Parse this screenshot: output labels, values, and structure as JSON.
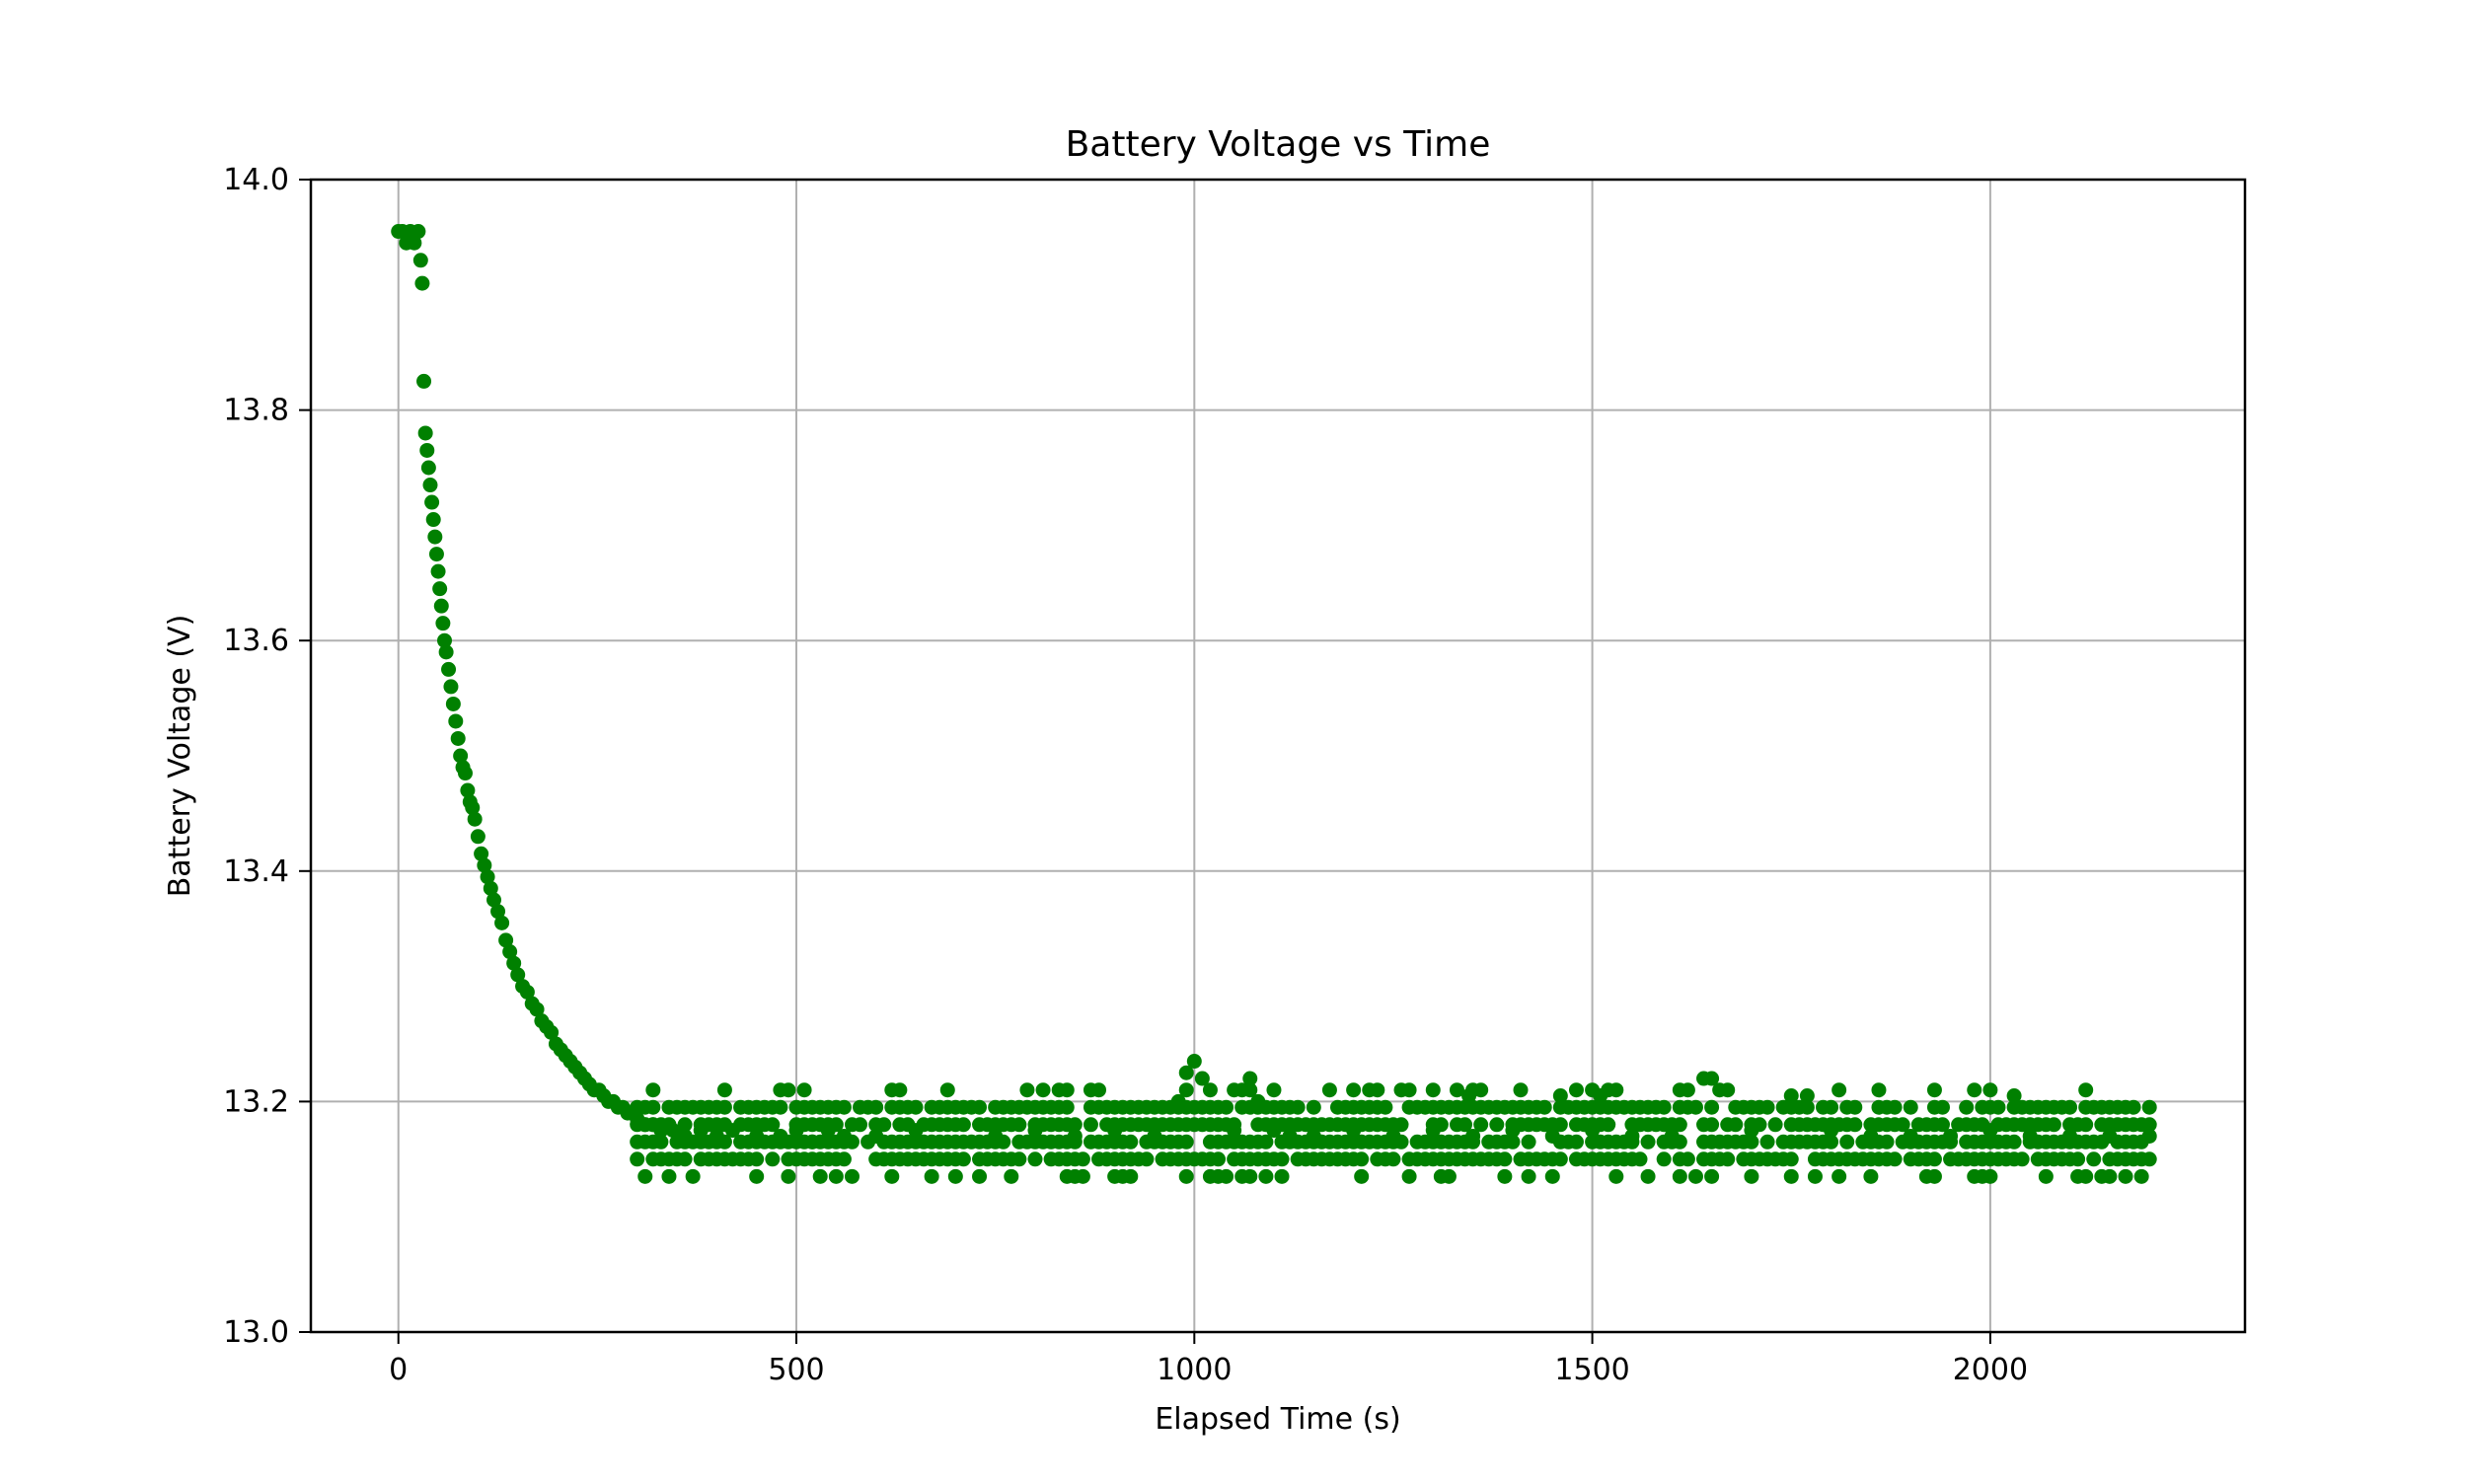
{
  "chart_data": {
    "type": "scatter",
    "title": "Battery Voltage vs Time",
    "xlabel": "Elapsed Time (s)",
    "ylabel": "Battery Voltage (V)",
    "xlim": [
      -110,
      2320
    ],
    "ylim": [
      13.0,
      14.0
    ],
    "xticks": [
      0,
      500,
      1000,
      1500,
      2000
    ],
    "yticks": [
      13.0,
      13.2,
      13.4,
      13.6,
      13.8,
      14.0
    ],
    "xtick_labels": [
      "0",
      "500",
      "1000",
      "1500",
      "2000"
    ],
    "ytick_labels": [
      "13.0",
      "13.2",
      "13.4",
      "13.6",
      "13.8",
      "14.0"
    ],
    "grid": true,
    "marker_color": "#008000",
    "series": [
      {
        "x": [
          0,
          5,
          10,
          15,
          20,
          25,
          28,
          30,
          32,
          34,
          36,
          38,
          40,
          42,
          44,
          46,
          48,
          50,
          52,
          54,
          56,
          58,
          60,
          63,
          66,
          69,
          72,
          75,
          78,
          81,
          84,
          87,
          90,
          93,
          96,
          100,
          104,
          108,
          112,
          116,
          120,
          125,
          130,
          135,
          140,
          145,
          150,
          156,
          162,
          168,
          174,
          180,
          186,
          192,
          198,
          204,
          210,
          216,
          222,
          228,
          234,
          240,
          246,
          252,
          258,
          264,
          270,
          276,
          282,
          288,
          294,
          300,
          310,
          320,
          330,
          345,
          360,
          380,
          400,
          420,
          450,
          480,
          500,
          520,
          540,
          560,
          600,
          650,
          700,
          750,
          800,
          850,
          900,
          950,
          980,
          990,
          1000,
          1010,
          1020,
          1050,
          1070,
          1080,
          1100,
          1120,
          1150,
          1200,
          1250,
          1300,
          1345,
          1350,
          1400,
          1450,
          1460,
          1500,
          1510,
          1550,
          1600,
          1640,
          1650,
          1660,
          1700,
          1750,
          1770,
          1800,
          1850,
          1900,
          1950,
          2000,
          2030,
          2050,
          2100,
          2150,
          2200
        ],
        "y": [
          13.955,
          13.955,
          13.945,
          13.955,
          13.945,
          13.955,
          13.93,
          13.91,
          13.825,
          13.78,
          13.765,
          13.75,
          13.735,
          13.72,
          13.705,
          13.69,
          13.675,
          13.66,
          13.645,
          13.63,
          13.615,
          13.6,
          13.59,
          13.575,
          13.56,
          13.545,
          13.53,
          13.515,
          13.5,
          13.49,
          13.485,
          13.47,
          13.46,
          13.455,
          13.445,
          13.43,
          13.415,
          13.405,
          13.395,
          13.385,
          13.375,
          13.365,
          13.355,
          13.34,
          13.33,
          13.32,
          13.31,
          13.3,
          13.295,
          13.285,
          13.28,
          13.27,
          13.265,
          13.26,
          13.25,
          13.245,
          13.24,
          13.235,
          13.23,
          13.225,
          13.22,
          13.215,
          13.21,
          13.21,
          13.205,
          13.2,
          13.2,
          13.195,
          13.195,
          13.19,
          13.19,
          13.185,
          13.18,
          13.18,
          13.175,
          13.175,
          13.17,
          13.175,
          13.17,
          13.175,
          13.17,
          13.17,
          13.175,
          13.165,
          13.175,
          13.17,
          13.17,
          13.175,
          13.165,
          13.17,
          13.175,
          13.17,
          13.175,
          13.17,
          13.2,
          13.225,
          13.235,
          13.22,
          13.21,
          13.175,
          13.22,
          13.2,
          13.175,
          13.17,
          13.17,
          13.175,
          13.17,
          13.175,
          13.205,
          13.17,
          13.175,
          13.17,
          13.205,
          13.175,
          13.205,
          13.17,
          13.17,
          13.22,
          13.22,
          13.21,
          13.175,
          13.205,
          13.205,
          13.175,
          13.17,
          13.17,
          13.17,
          13.175,
          13.205,
          13.17,
          13.17,
          13.17,
          13.17
        ]
      }
    ],
    "scatter_band": {
      "x_start": 300,
      "x_end": 2200,
      "x_step": 10,
      "levels": [
        13.135,
        13.15,
        13.165,
        13.18,
        13.195,
        13.21
      ]
    }
  }
}
